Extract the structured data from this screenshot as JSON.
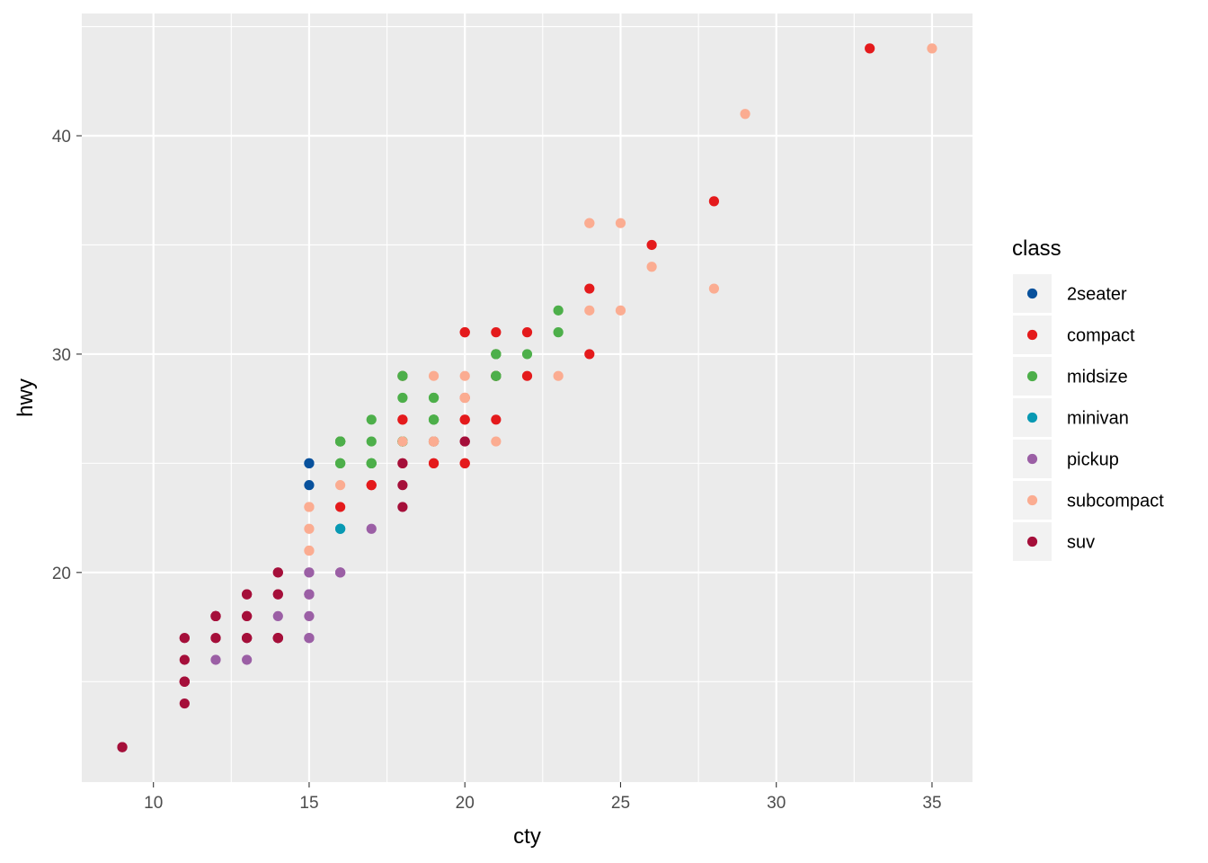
{
  "chart_data": {
    "type": "scatter",
    "title": "",
    "xlabel": "cty",
    "ylabel": "hwy",
    "xlim": [
      7.7,
      36.3
    ],
    "ylim": [
      10.4,
      45.6
    ],
    "x_ticks": [
      10,
      15,
      20,
      25,
      30,
      35
    ],
    "y_ticks": [
      20,
      30,
      40
    ],
    "x_minor_ticks": [
      12.5,
      17.5,
      22.5,
      27.5,
      32.5
    ],
    "y_minor_ticks": [
      15,
      25,
      35,
      45
    ],
    "grid": true,
    "panel_background": "#ebebeb",
    "grid_color": "#ffffff",
    "legend_title": "class",
    "legend_position": "right",
    "series": [
      {
        "name": "2seater",
        "color": "#08519c",
        "x": [
          15,
          15,
          15
        ],
        "y": [
          25,
          24,
          25
        ]
      },
      {
        "name": "compact",
        "color": "#e41a1c",
        "x": [
          18,
          21,
          20,
          21,
          16,
          18,
          18,
          18,
          20,
          20,
          21,
          21,
          21,
          21,
          20,
          19,
          19,
          17,
          22,
          22,
          28,
          24,
          26,
          24,
          33,
          20,
          21,
          19,
          19,
          18,
          20,
          20,
          16,
          17
        ],
        "y": [
          29,
          29,
          31,
          30,
          26,
          26,
          27,
          25,
          28,
          27,
          31,
          29,
          29,
          29,
          25,
          25,
          26,
          24,
          31,
          29,
          37,
          33,
          35,
          30,
          44,
          27,
          27,
          25,
          26,
          27,
          31,
          25,
          23,
          24
        ]
      },
      {
        "name": "midsize",
        "color": "#4daf4a",
        "x": [
          18,
          19,
          21,
          16,
          16,
          21,
          23,
          23,
          22,
          18,
          18,
          18,
          17,
          17,
          17,
          19,
          21,
          18,
          19,
          18,
          21,
          21,
          19,
          18,
          16,
          16,
          19,
          17,
          18,
          16,
          21,
          19,
          18,
          17,
          17,
          16,
          18,
          16,
          19,
          16,
          21
        ],
        "y": [
          29,
          28,
          30,
          25,
          26,
          30,
          32,
          31,
          30,
          28,
          26,
          26,
          25,
          25,
          27,
          27,
          29,
          29,
          28,
          26,
          29,
          29,
          26,
          26,
          26,
          25,
          27,
          26,
          26,
          26,
          29,
          27,
          26,
          25,
          25,
          26,
          26,
          26,
          27,
          25,
          30
        ]
      },
      {
        "name": "minivan",
        "color": "#0899b3",
        "x": [
          16,
          16
        ],
        "y": [
          22,
          22
        ]
      },
      {
        "name": "pickup",
        "color": "#9b5fa5",
        "x": [
          15,
          15,
          15,
          15,
          15,
          14,
          12,
          13,
          15,
          15,
          16,
          16,
          17,
          15,
          15,
          16
        ],
        "y": [
          20,
          19,
          18,
          17,
          17,
          18,
          16,
          16,
          19,
          20,
          20,
          20,
          22,
          17,
          19,
          20
        ]
      },
      {
        "name": "subcompact",
        "color": "#fbac91",
        "x": [
          15,
          15,
          16,
          15,
          24,
          25,
          28,
          29,
          35,
          24,
          25,
          26,
          24,
          23,
          21,
          19,
          19,
          20,
          18,
          19,
          20,
          20,
          15,
          15
        ],
        "y": [
          23,
          21,
          24,
          22,
          36,
          36,
          33,
          41,
          44,
          32,
          32,
          34,
          36,
          29,
          26,
          29,
          26,
          28,
          26,
          26,
          28,
          29,
          23,
          21
        ]
      },
      {
        "name": "suv",
        "color": "#a50f3a",
        "x": [
          11,
          12,
          11,
          9,
          11,
          14,
          13,
          14,
          14,
          11,
          11,
          12,
          12,
          13,
          12,
          9,
          11,
          11,
          13,
          14,
          13,
          14,
          14,
          12,
          12,
          14,
          13,
          13,
          20,
          18,
          18,
          18,
          11,
          14,
          20,
          14,
          13
        ],
        "y": [
          15,
          18,
          17,
          12,
          17,
          20,
          19,
          17,
          17,
          16,
          14,
          18,
          17,
          17,
          17,
          12,
          15,
          15,
          18,
          19,
          18,
          17,
          17,
          18,
          18,
          20,
          17,
          17,
          26,
          25,
          24,
          23,
          15,
          19,
          26,
          17,
          19
        ]
      }
    ]
  }
}
